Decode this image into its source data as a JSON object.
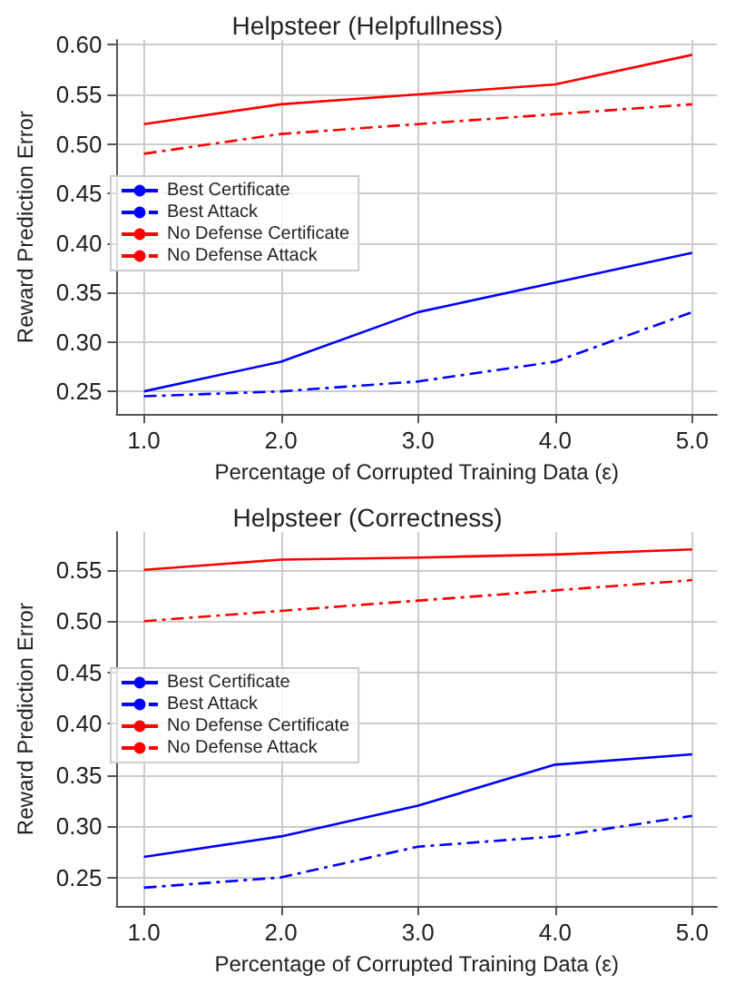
{
  "chart_data": [
    {
      "type": "line",
      "title": "Helpsteer (Helpfullness)",
      "xlabel": "Percentage of Corrupted Training Data (ε)",
      "ylabel": "Reward Prediction Error",
      "x": [
        1,
        2,
        3,
        4,
        5
      ],
      "series": [
        {
          "name": "Best Certificate",
          "color": "#0000ff",
          "line_style": "solid",
          "values": [
            0.25,
            0.28,
            0.33,
            0.36,
            0.39
          ]
        },
        {
          "name": "Best Attack",
          "color": "#0000ff",
          "line_style": "dashed",
          "values": [
            0.245,
            0.25,
            0.26,
            0.28,
            0.33
          ]
        },
        {
          "name": "No Defense Certificate",
          "color": "#ff0000",
          "line_style": "solid",
          "values": [
            0.52,
            0.54,
            0.55,
            0.56,
            0.59
          ]
        },
        {
          "name": "No Defense Attack",
          "color": "#ff0000",
          "line_style": "dashed",
          "values": [
            0.49,
            0.51,
            0.52,
            0.53,
            0.54
          ]
        }
      ],
      "xlim": [
        0.8,
        5.18
      ],
      "xticks": [
        {
          "value": 1,
          "label": "1.0"
        },
        {
          "value": 2,
          "label": "2.0"
        },
        {
          "value": 3,
          "label": "3.0"
        },
        {
          "value": 4,
          "label": "4.0"
        },
        {
          "value": 5,
          "label": "5.0"
        }
      ],
      "ylim": [
        0.227,
        0.605
      ],
      "yticks": [
        0.25,
        {
          "value": 0.3,
          "label": "0.30"
        },
        0.35,
        {
          "value": 0.4,
          "label": "0.40"
        },
        0.45,
        {
          "value": 0.5,
          "label": "0.50"
        },
        0.55,
        {
          "value": 0.6,
          "label": "0.60"
        }
      ],
      "grid": true,
      "legend": "left",
      "marker": "none"
    },
    {
      "type": "line",
      "title": "Helpsteer (Correctness)",
      "xlabel": "Percentage of Corrupted Training Data (ε)",
      "ylabel": "Reward Prediction Error",
      "x": [
        1,
        2,
        3,
        4,
        5
      ],
      "series": [
        {
          "name": "Best Certificate",
          "color": "#0000ff",
          "line_style": "solid",
          "values": [
            0.27,
            0.29,
            0.32,
            0.36,
            0.37
          ]
        },
        {
          "name": "Best Attack",
          "color": "#0000ff",
          "line_style": "dashed",
          "values": [
            0.24,
            0.25,
            0.28,
            0.29,
            0.31
          ]
        },
        {
          "name": "No Defense Certificate",
          "color": "#ff0000",
          "line_style": "solid",
          "values": [
            0.55,
            0.56,
            0.562,
            0.565,
            0.57
          ]
        },
        {
          "name": "No Defense Attack",
          "color": "#ff0000",
          "line_style": "dashed",
          "values": [
            0.5,
            0.51,
            0.52,
            0.53,
            0.54
          ]
        }
      ],
      "xlim": [
        0.8,
        5.18
      ],
      "xticks": [
        {
          "value": 1,
          "label": "1.0"
        },
        {
          "value": 2,
          "label": "2.0"
        },
        {
          "value": 3,
          "label": "3.0"
        },
        {
          "value": 4,
          "label": "4.0"
        },
        {
          "value": 5,
          "label": "5.0"
        }
      ],
      "ylim": [
        0.222,
        0.587
      ],
      "yticks": [
        0.25,
        {
          "value": 0.3,
          "label": "0.30"
        },
        0.35,
        {
          "value": 0.4,
          "label": "0.40"
        },
        0.45,
        {
          "value": 0.5,
          "label": "0.50"
        },
        0.55
      ],
      "grid": true,
      "legend": "left",
      "marker": "none"
    }
  ]
}
